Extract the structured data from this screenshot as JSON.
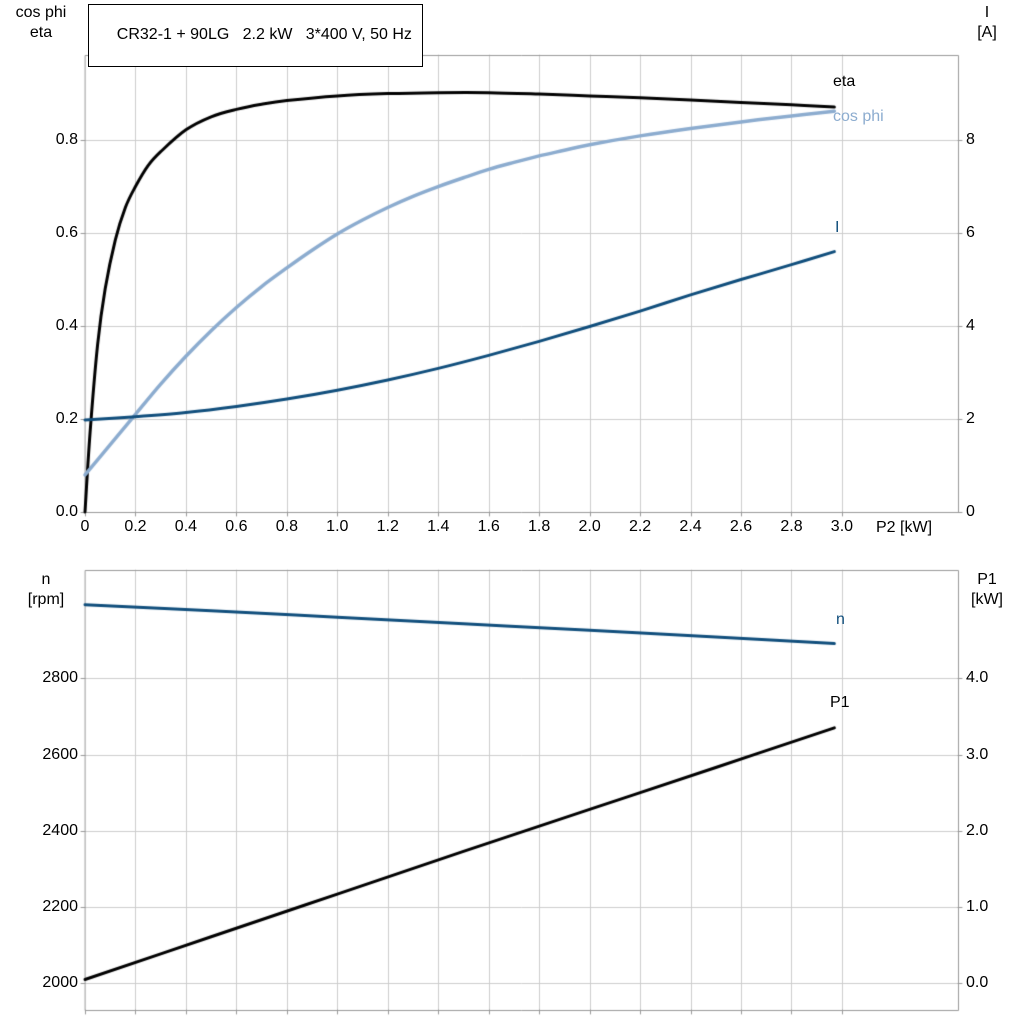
{
  "title_box": "CR32-1 + 90LG   2.2 kW   3*400 V, 50 Hz",
  "colors": {
    "curve_black": "#000000",
    "curve_light_blue": "#8caccf",
    "curve_dark_blue": "#104e7c",
    "grid": "#cccccc",
    "axis_border": "#999999",
    "background": "#ffffff"
  },
  "curve_labels": {
    "eta": "eta",
    "cos_phi": "cos phi",
    "current": "I",
    "speed": "n",
    "power": "P1"
  },
  "chart_data": [
    {
      "type": "line",
      "title": "CR32-1 + 90LG   2.2 kW   3*400 V, 50 Hz",
      "x_label": "P2 [kW]",
      "x_axis": {
        "range": [
          0,
          3.46
        ],
        "ticks": [
          0,
          0.2,
          0.4,
          0.6,
          0.8,
          1.0,
          1.2,
          1.4,
          1.6,
          1.8,
          2.0,
          2.2,
          2.4,
          2.6,
          2.8,
          3.0
        ],
        "tick_labels": [
          "0",
          "0.2",
          "0.4",
          "0.6",
          "0.8",
          "1.0",
          "1.2",
          "1.4",
          "1.6",
          "1.8",
          "2.0",
          "2.2",
          "2.4",
          "2.6",
          "2.8",
          "3.0"
        ]
      },
      "left_axis": {
        "label_top": "cos phi",
        "label_bottom": "eta",
        "range": [
          0,
          0.983
        ],
        "ticks": [
          0,
          0.2,
          0.4,
          0.6,
          0.8
        ],
        "tick_labels": [
          "0.0",
          "0.2",
          "0.4",
          "0.6",
          "0.8"
        ]
      },
      "right_axis": {
        "label_top": "I",
        "label_bottom": "[A]",
        "range": [
          0,
          9.83
        ],
        "ticks": [
          0,
          2,
          4,
          6,
          8
        ],
        "tick_labels": [
          "0",
          "2",
          "4",
          "6",
          "8"
        ]
      },
      "series": [
        {
          "name": "eta",
          "axis": "left",
          "color_key": "curve_black",
          "width": 3,
          "points": [
            [
              0,
              0
            ],
            [
              0.02,
              0.17
            ],
            [
              0.05,
              0.36
            ],
            [
              0.08,
              0.48
            ],
            [
              0.12,
              0.585
            ],
            [
              0.16,
              0.655
            ],
            [
              0.2,
              0.7
            ],
            [
              0.25,
              0.745
            ],
            [
              0.3,
              0.775
            ],
            [
              0.4,
              0.822
            ],
            [
              0.5,
              0.85
            ],
            [
              0.6,
              0.866
            ],
            [
              0.7,
              0.877
            ],
            [
              0.8,
              0.885
            ],
            [
              1.0,
              0.895
            ],
            [
              1.2,
              0.9
            ],
            [
              1.4,
              0.902
            ],
            [
              1.6,
              0.902
            ],
            [
              1.8,
              0.899
            ],
            [
              2.0,
              0.895
            ],
            [
              2.2,
              0.891
            ],
            [
              2.4,
              0.886
            ],
            [
              2.6,
              0.881
            ],
            [
              2.8,
              0.876
            ],
            [
              2.97,
              0.871
            ]
          ]
        },
        {
          "name": "cos phi",
          "axis": "left",
          "color_key": "curve_light_blue",
          "width": 3.5,
          "points": [
            [
              0,
              0.08
            ],
            [
              0.1,
              0.145
            ],
            [
              0.2,
              0.21
            ],
            [
              0.3,
              0.275
            ],
            [
              0.4,
              0.335
            ],
            [
              0.5,
              0.39
            ],
            [
              0.6,
              0.44
            ],
            [
              0.7,
              0.485
            ],
            [
              0.8,
              0.525
            ],
            [
              0.9,
              0.563
            ],
            [
              1.0,
              0.598
            ],
            [
              1.1,
              0.628
            ],
            [
              1.2,
              0.655
            ],
            [
              1.3,
              0.679
            ],
            [
              1.4,
              0.7
            ],
            [
              1.5,
              0.719
            ],
            [
              1.6,
              0.737
            ],
            [
              1.7,
              0.752
            ],
            [
              1.8,
              0.766
            ],
            [
              1.9,
              0.778
            ],
            [
              2.0,
              0.79
            ],
            [
              2.2,
              0.809
            ],
            [
              2.4,
              0.825
            ],
            [
              2.6,
              0.839
            ],
            [
              2.8,
              0.852
            ],
            [
              2.97,
              0.862
            ]
          ]
        },
        {
          "name": "I",
          "axis": "right",
          "color_key": "curve_dark_blue",
          "width": 3,
          "points": [
            [
              0,
              1.98
            ],
            [
              0.2,
              2.05
            ],
            [
              0.4,
              2.14
            ],
            [
              0.6,
              2.27
            ],
            [
              0.8,
              2.43
            ],
            [
              1.0,
              2.62
            ],
            [
              1.2,
              2.84
            ],
            [
              1.4,
              3.09
            ],
            [
              1.6,
              3.37
            ],
            [
              1.8,
              3.67
            ],
            [
              2.0,
              3.99
            ],
            [
              2.2,
              4.32
            ],
            [
              2.4,
              4.67
            ],
            [
              2.6,
              5.0
            ],
            [
              2.8,
              5.32
            ],
            [
              2.97,
              5.6
            ]
          ]
        }
      ]
    },
    {
      "type": "line",
      "title": "",
      "x_label": "",
      "x_axis": {
        "range": [
          0,
          3.46
        ],
        "ticks": [
          0,
          0.2,
          0.4,
          0.6,
          0.8,
          1.0,
          1.2,
          1.4,
          1.6,
          1.8,
          2.0,
          2.2,
          2.4,
          2.6,
          2.8,
          3.0
        ],
        "tick_labels": []
      },
      "left_axis": {
        "label_top": "n",
        "label_bottom": "[rpm]",
        "range": [
          1930,
          3084
        ],
        "ticks": [
          2000,
          2200,
          2400,
          2600,
          2800
        ],
        "tick_labels": [
          "2000",
          "2200",
          "2400",
          "2600",
          "2800"
        ]
      },
      "right_axis": {
        "label_top": "P1",
        "label_bottom": "[kW]",
        "range": [
          -0.35,
          5.42
        ],
        "ticks": [
          0,
          1,
          2,
          3,
          4
        ],
        "tick_labels": [
          "0.0",
          "1.0",
          "2.0",
          "3.0",
          "4.0"
        ]
      },
      "series": [
        {
          "name": "n",
          "axis": "left",
          "color_key": "curve_dark_blue",
          "width": 3,
          "points": [
            [
              0,
              2993
            ],
            [
              0.5,
              2977
            ],
            [
              1.0,
              2960
            ],
            [
              1.5,
              2943
            ],
            [
              2.0,
              2926
            ],
            [
              2.5,
              2908
            ],
            [
              2.97,
              2891
            ]
          ]
        },
        {
          "name": "P1",
          "axis": "right",
          "color_key": "curve_black",
          "width": 3,
          "points": [
            [
              0,
              0.05
            ],
            [
              0.5,
              0.61
            ],
            [
              1.0,
              1.17
            ],
            [
              1.5,
              1.73
            ],
            [
              2.0,
              2.28
            ],
            [
              2.5,
              2.83
            ],
            [
              2.97,
              3.35
            ]
          ]
        }
      ]
    }
  ]
}
